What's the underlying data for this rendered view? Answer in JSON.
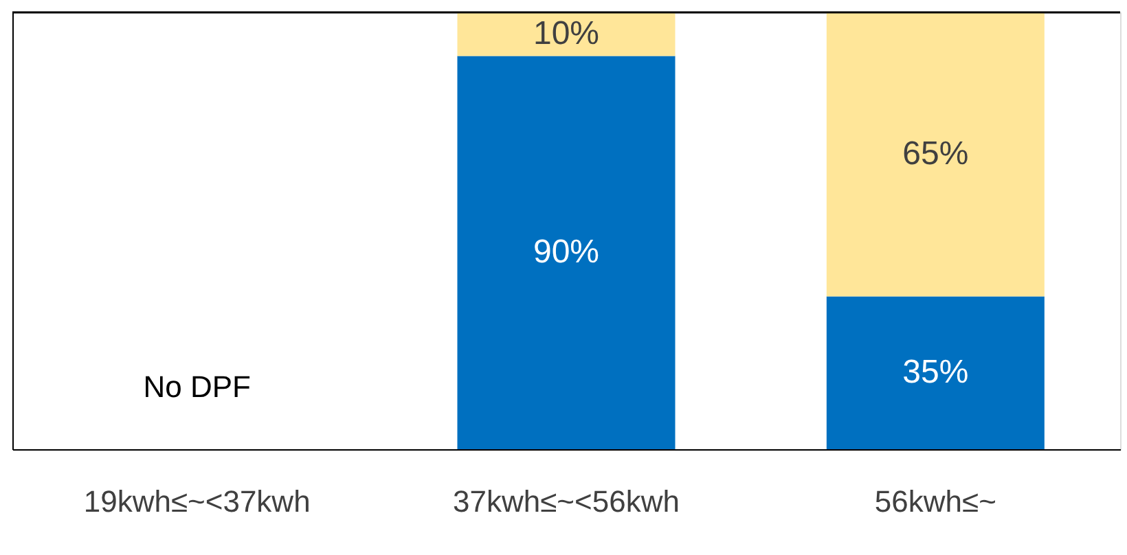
{
  "chart_data": {
    "type": "bar",
    "stacked": true,
    "categories": [
      "19kwh≤~<37kwh",
      "37kwh≤~<56kwh",
      "56kwh≤~"
    ],
    "series": [
      {
        "color": "#0070c0",
        "values": [
          null,
          90,
          35
        ],
        "value_labels": [
          null,
          "90%",
          "35%"
        ]
      },
      {
        "color": "#ffe699",
        "values": [
          null,
          10,
          65
        ],
        "value_labels": [
          null,
          "10%",
          "65%"
        ]
      }
    ],
    "annotations": [
      "No DPF"
    ],
    "tick_labels": "x",
    "grid": false
  }
}
